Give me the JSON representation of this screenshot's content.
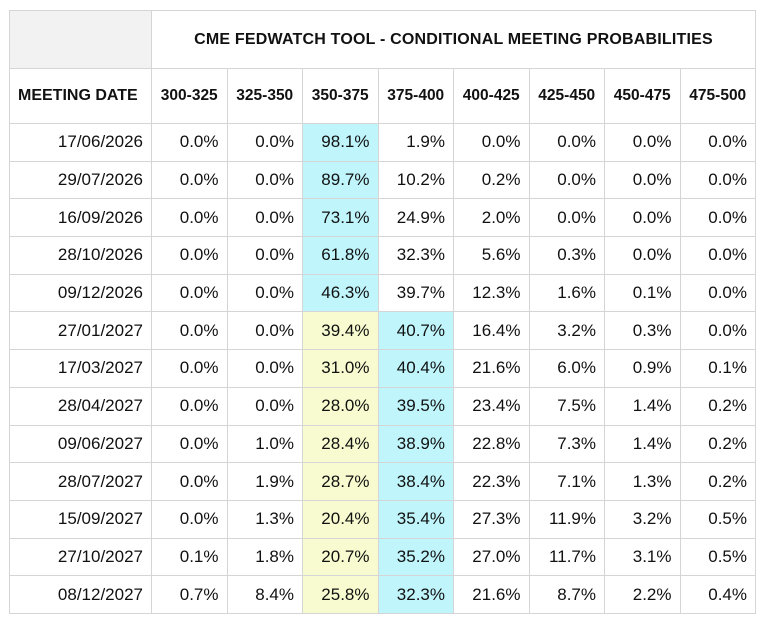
{
  "title": "CME FEDWATCH TOOL - CONDITIONAL MEETING PROBABILITIES",
  "date_header": "MEETING DATE",
  "columns": [
    "300-325",
    "325-350",
    "350-375",
    "375-400",
    "400-425",
    "425-450",
    "450-475",
    "475-500"
  ],
  "colors": {
    "highest": "#bff5fb",
    "current_target": "#f8fbcf",
    "border": "#d5d5d5"
  },
  "rows": [
    {
      "date": "17/06/2026",
      "values": [
        "0.0%",
        "0.0%",
        "98.1%",
        "1.9%",
        "0.0%",
        "0.0%",
        "0.0%",
        "0.0%"
      ],
      "highest": 2,
      "current": null
    },
    {
      "date": "29/07/2026",
      "values": [
        "0.0%",
        "0.0%",
        "89.7%",
        "10.2%",
        "0.2%",
        "0.0%",
        "0.0%",
        "0.0%"
      ],
      "highest": 2,
      "current": null
    },
    {
      "date": "16/09/2026",
      "values": [
        "0.0%",
        "0.0%",
        "73.1%",
        "24.9%",
        "2.0%",
        "0.0%",
        "0.0%",
        "0.0%"
      ],
      "highest": 2,
      "current": null
    },
    {
      "date": "28/10/2026",
      "values": [
        "0.0%",
        "0.0%",
        "61.8%",
        "32.3%",
        "5.6%",
        "0.3%",
        "0.0%",
        "0.0%"
      ],
      "highest": 2,
      "current": null
    },
    {
      "date": "09/12/2026",
      "values": [
        "0.0%",
        "0.0%",
        "46.3%",
        "39.7%",
        "12.3%",
        "1.6%",
        "0.1%",
        "0.0%"
      ],
      "highest": 2,
      "current": null
    },
    {
      "date": "27/01/2027",
      "values": [
        "0.0%",
        "0.0%",
        "39.4%",
        "40.7%",
        "16.4%",
        "3.2%",
        "0.3%",
        "0.0%"
      ],
      "highest": 3,
      "current": 2
    },
    {
      "date": "17/03/2027",
      "values": [
        "0.0%",
        "0.0%",
        "31.0%",
        "40.4%",
        "21.6%",
        "6.0%",
        "0.9%",
        "0.1%"
      ],
      "highest": 3,
      "current": 2
    },
    {
      "date": "28/04/2027",
      "values": [
        "0.0%",
        "0.0%",
        "28.0%",
        "39.5%",
        "23.4%",
        "7.5%",
        "1.4%",
        "0.2%"
      ],
      "highest": 3,
      "current": 2
    },
    {
      "date": "09/06/2027",
      "values": [
        "0.0%",
        "1.0%",
        "28.4%",
        "38.9%",
        "22.8%",
        "7.3%",
        "1.4%",
        "0.2%"
      ],
      "highest": 3,
      "current": 2
    },
    {
      "date": "28/07/2027",
      "values": [
        "0.0%",
        "1.9%",
        "28.7%",
        "38.4%",
        "22.3%",
        "7.1%",
        "1.3%",
        "0.2%"
      ],
      "highest": 3,
      "current": 2
    },
    {
      "date": "15/09/2027",
      "values": [
        "0.0%",
        "1.3%",
        "20.4%",
        "35.4%",
        "27.3%",
        "11.9%",
        "3.2%",
        "0.5%"
      ],
      "highest": 3,
      "current": 2
    },
    {
      "date": "27/10/2027",
      "values": [
        "0.1%",
        "1.8%",
        "20.7%",
        "35.2%",
        "27.0%",
        "11.7%",
        "3.1%",
        "0.5%"
      ],
      "highest": 3,
      "current": 2
    },
    {
      "date": "08/12/2027",
      "values": [
        "0.7%",
        "8.4%",
        "25.8%",
        "32.3%",
        "21.6%",
        "8.7%",
        "2.2%",
        "0.4%"
      ],
      "highest": 3,
      "current": 2
    }
  ],
  "chart_data": {
    "type": "table",
    "title": "CME FEDWATCH TOOL - CONDITIONAL MEETING PROBABILITIES",
    "row_header": "MEETING DATE",
    "columns": [
      "300-325",
      "325-350",
      "350-375",
      "375-400",
      "400-425",
      "425-450",
      "450-475",
      "475-500"
    ],
    "unit": "%"
  }
}
